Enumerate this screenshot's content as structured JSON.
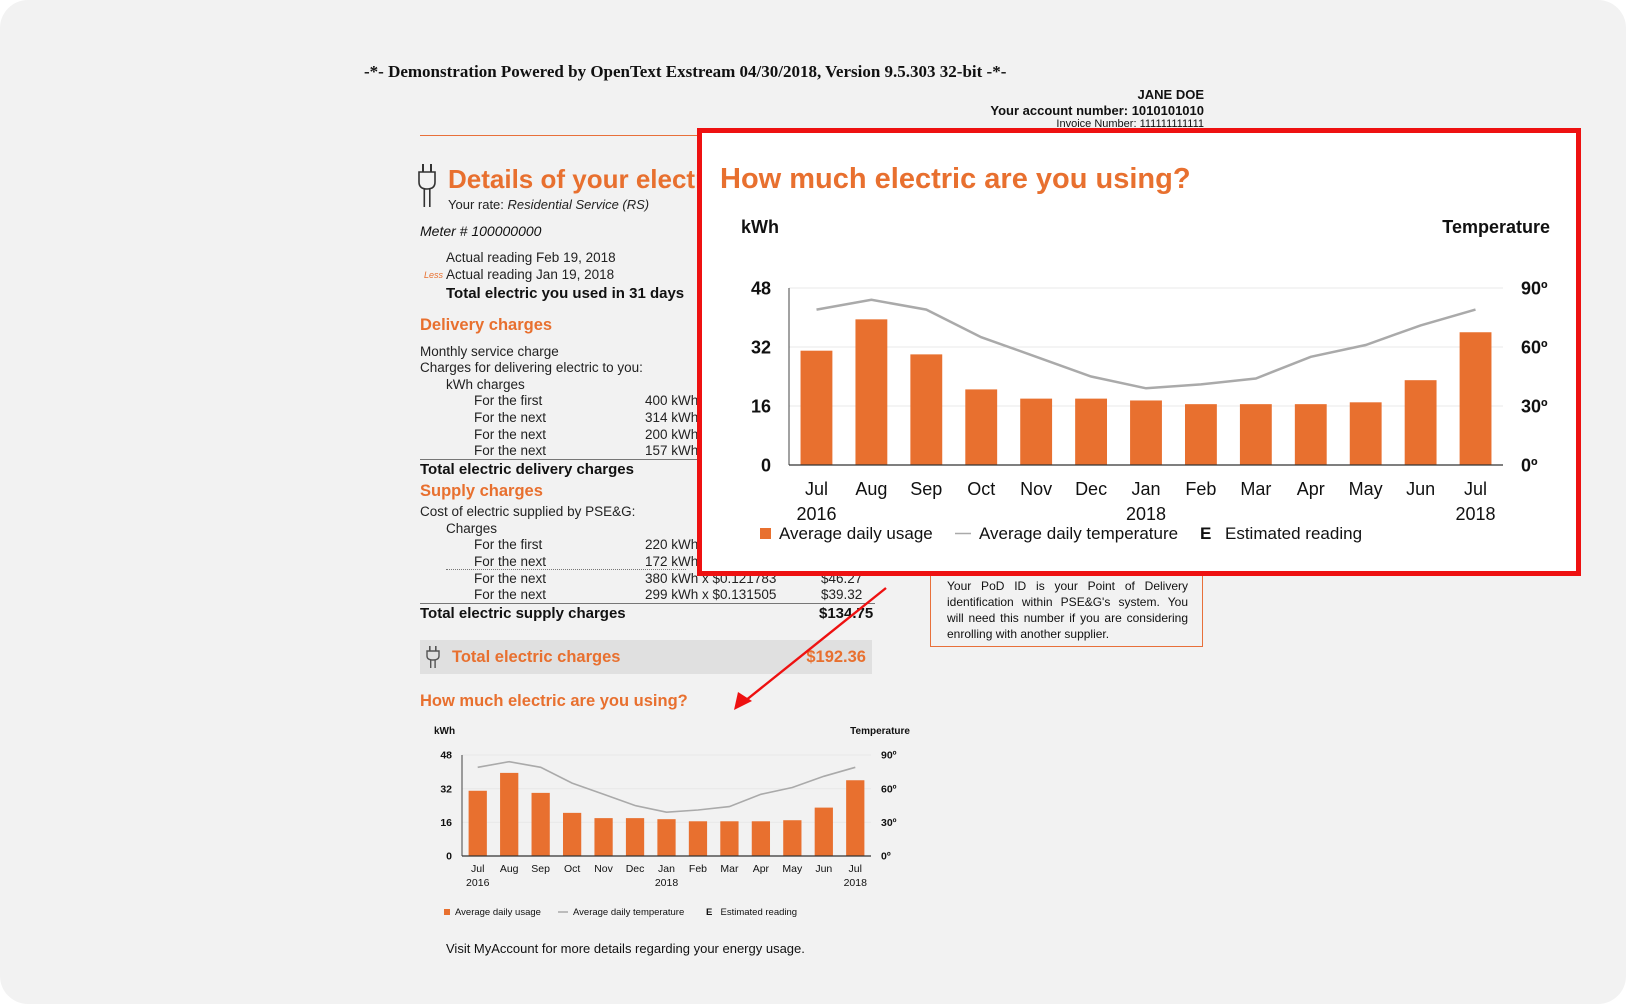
{
  "demo_banner": "-*- Demonstration Powered by OpenText Exstream 04/30/2018, Version 9.5.303 32-bit -*-",
  "account": {
    "name": "JANE DOE",
    "account_line": "Your account number: 1010101010",
    "invoice_line": "Invoice Number: 111111111111"
  },
  "details": {
    "heading": "Details of your electr",
    "rate_label": "Your rate:",
    "rate_value": "Residential Service (RS)",
    "meter": "Meter # 100000000",
    "actual_reading_1": "Actual reading Feb 19, 2018",
    "less": "Less",
    "actual_reading_2": "Actual reading Jan 19, 2018",
    "total_used": "Total electric you used in 31 days"
  },
  "delivery": {
    "heading": "Delivery charges",
    "monthly_service": "Monthly service charge",
    "charges_for": "Charges for delivering electric to you:",
    "kwh_charges": "kWh charges",
    "rows": [
      {
        "label": "For the first",
        "qty": "400 kWh"
      },
      {
        "label": "For the next",
        "qty": "314 kWh"
      },
      {
        "label": "For the next",
        "qty": "200 kWh"
      },
      {
        "label": "For the next",
        "qty": "157 kWh"
      }
    ],
    "total": "Total electric delivery charges"
  },
  "supply": {
    "heading": "Supply charges",
    "cost_line": "Cost of electric supplied by PSE&G:",
    "charges": "Charges",
    "rows": [
      {
        "label": "For the first",
        "qty": "220 kWh",
        "amount": ""
      },
      {
        "label": "For the next",
        "qty": "172 kWh",
        "amount": ""
      },
      {
        "label": "For the next",
        "qty": "380 kWh x $0.121783",
        "amount": "$46.27"
      },
      {
        "label": "For the next",
        "qty": "299 kWh x $0.131505",
        "amount": "$39.32"
      }
    ],
    "total": "Total electric supply charges",
    "total_amount": "$134.75"
  },
  "total_charges": {
    "label": "Total electric charges",
    "amount": "$192.36"
  },
  "pod_note": "Your PoD ID is your Point of Delivery identification within PSE&G's system. You will need this number if you are considering enrolling with another supplier.",
  "usage_heading": "How much electric are you using?",
  "visit_note": "Visit MyAccount for more details regarding your energy usage.",
  "colors": {
    "accent": "#e8702f",
    "highlight": "#ee1111",
    "temp_line": "#aaaaaa"
  },
  "chart_data": {
    "type": "bar",
    "title": "How much electric are you using?",
    "ylabel": "kWh",
    "y2label": "Temperature",
    "categories": [
      "Jul",
      "Aug",
      "Sep",
      "Oct",
      "Nov",
      "Dec",
      "Jan",
      "Feb",
      "Mar",
      "Apr",
      "May",
      "Jun",
      "Jul"
    ],
    "year_labels": {
      "0": "2016",
      "6": "2018",
      "12": "2018"
    },
    "ylim": [
      0,
      48
    ],
    "yticks": [
      "0",
      "16",
      "32",
      "48"
    ],
    "y2lim": [
      0,
      90
    ],
    "y2ticks": [
      "0º",
      "30º",
      "60º",
      "90º"
    ],
    "series": [
      {
        "name": "Average daily usage",
        "type": "bar",
        "axis": "left",
        "color": "#e8702f",
        "values": [
          31,
          39.5,
          30,
          20.5,
          18,
          18,
          17.5,
          16.5,
          16.5,
          16.5,
          17,
          23,
          36
        ]
      },
      {
        "name": "Average daily temperature",
        "type": "line",
        "axis": "right",
        "color": "#aaaaaa",
        "values": [
          79,
          84,
          79,
          65,
          55,
          45,
          39,
          41,
          44,
          55,
          61,
          71,
          79
        ]
      }
    ],
    "legend": [
      "Average daily usage",
      "Average daily temperature",
      "Estimated reading"
    ],
    "legend_estimated_marker": "E",
    "legend_position": "bottom"
  }
}
